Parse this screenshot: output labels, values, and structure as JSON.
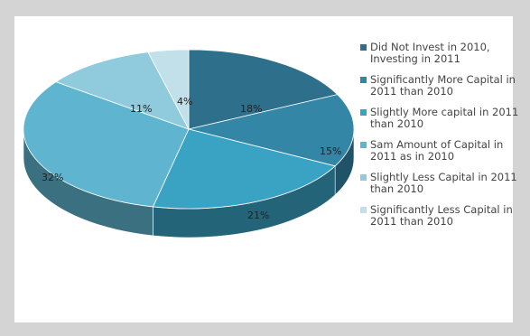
{
  "chart_data": {
    "type": "pie",
    "title": "",
    "legend_position": "right",
    "slices": [
      {
        "label": "Did Not Invest in 2010, Investing in 2011",
        "value": 18,
        "value_label": "18%",
        "color": "#2e6f8c"
      },
      {
        "label": "Significantly More Capital in 2011 than 2010",
        "value": 15,
        "value_label": "15%",
        "color": "#3386a6"
      },
      {
        "label": "Slightly More capital in 2011 than 2010",
        "value": 21,
        "value_label": "21%",
        "color": "#3aa2c3"
      },
      {
        "label": "Sam Amount of Capital in 2011 as in 2010",
        "value": 32,
        "value_label": "32%",
        "color": "#5fb5cf"
      },
      {
        "label": "Slightly Less Capital in 2011 than 2010",
        "value": 11,
        "value_label": "11%",
        "color": "#8fcbdc"
      },
      {
        "label": "Significantly Less Capital in 2011 than 2010",
        "value": 4,
        "value_label": "4%",
        "color": "#c2e0e9"
      }
    ]
  }
}
